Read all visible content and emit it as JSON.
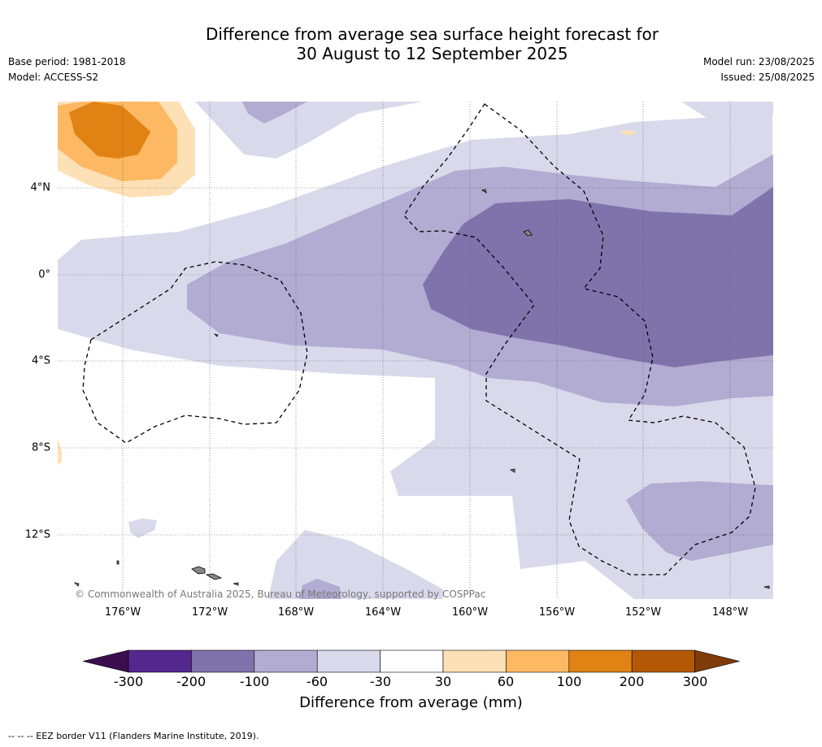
{
  "title_line1": "Difference from average sea surface height forecast for",
  "title_line2": "30 August to 12 September 2025",
  "base_period": "Base period: 1981-2018",
  "model": "Model: ACCESS-S2",
  "model_run": "Model run: 23/08/2025",
  "issued": "Issued: 25/08/2025",
  "credit": "© Commonwealth of Australia 2025, Bureau of Meteorology, supported by COSPPac",
  "lon_labels": [
    "176°W",
    "172°W",
    "168°W",
    "164°W",
    "160°W",
    "156°W",
    "152°W",
    "148°W"
  ],
  "lat_labels": [
    "4°N",
    "0°",
    "4°S",
    "8°S",
    "12°S"
  ],
  "colorbar": {
    "title": "Difference from average (mm)",
    "ticks": [
      "-300",
      "-200",
      "-100",
      "-60",
      "-30",
      "30",
      "60",
      "100",
      "200",
      "300"
    ],
    "colors": [
      "#3b0f4f",
      "#54278f",
      "#8073ac",
      "#b2abd2",
      "#d8daeb",
      "#ffffff",
      "#fee0b6",
      "#fdb863",
      "#e08214",
      "#b35806",
      "#7f3b08"
    ]
  },
  "footnote": "-- -- -- EEZ border V11 (Flanders Marine Institute, 2019)."
}
